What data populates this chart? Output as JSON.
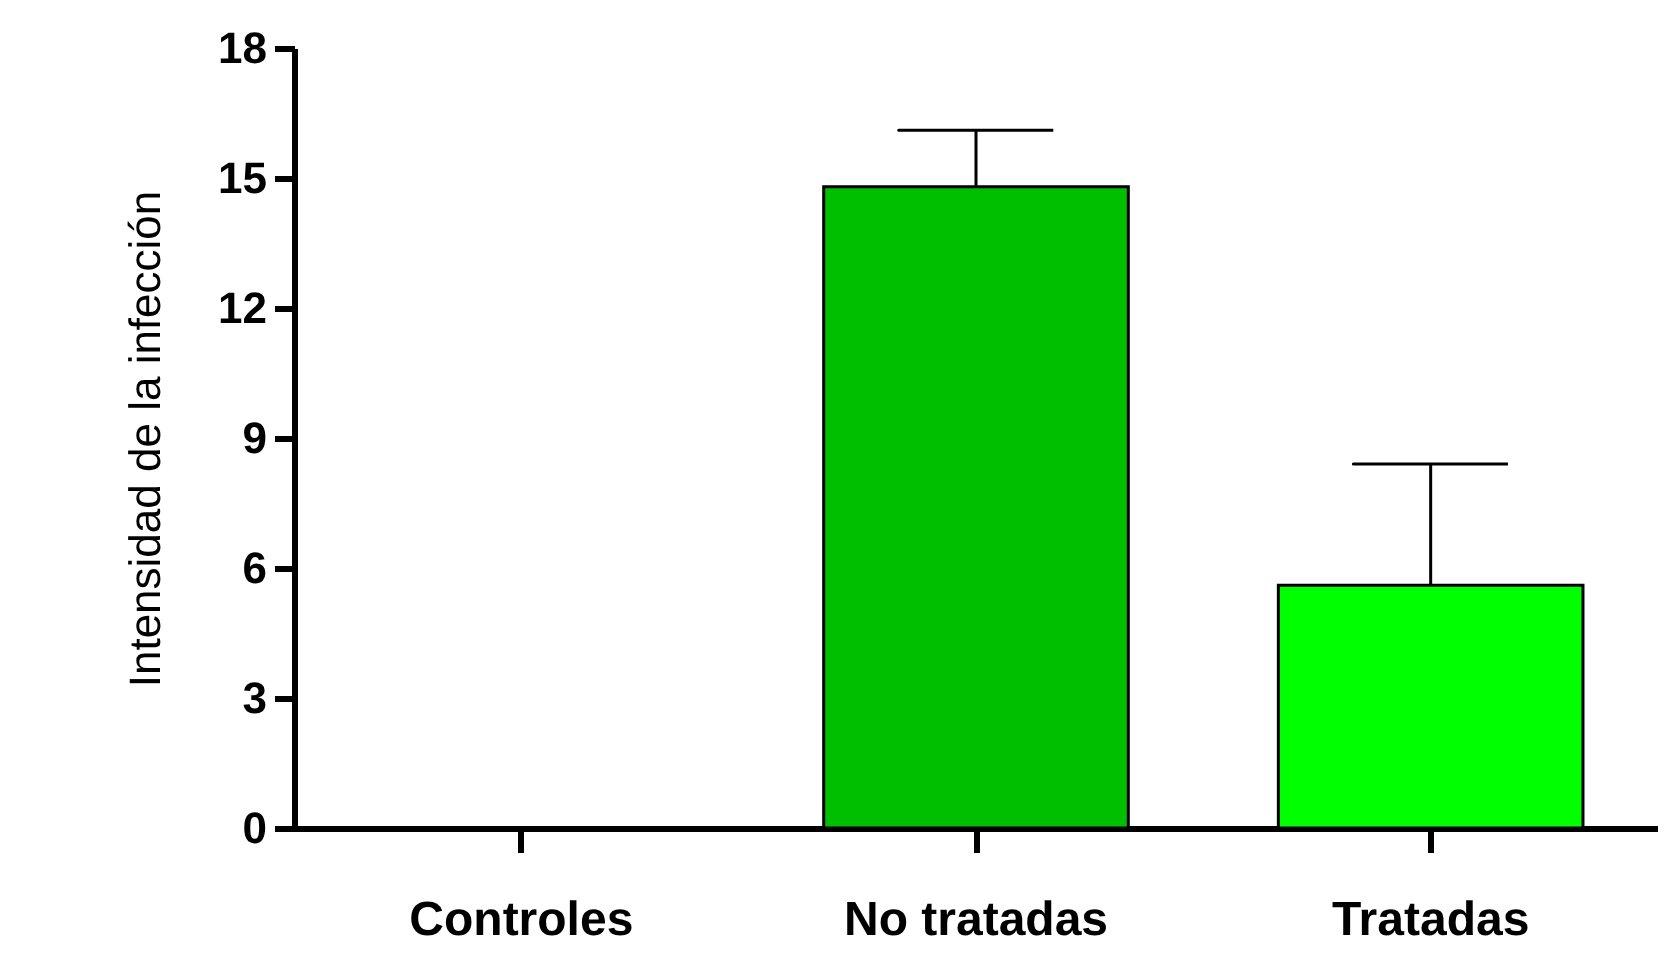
{
  "chart_data": {
    "type": "bar",
    "ylabel": "Intensidad de la infección",
    "categories": [
      "Controles",
      "No tratadas",
      "Tratadas"
    ],
    "values": [
      0,
      14.8,
      5.6
    ],
    "colors": [
      "#00bf00",
      "#00bf00",
      "#00ff00"
    ],
    "errors": [
      null,
      [
        14.8,
        16.1
      ],
      [
        5.6,
        8.4
      ]
    ],
    "ylim": [
      0,
      18
    ],
    "yticks": [
      0,
      3,
      6,
      9,
      12,
      15,
      18
    ],
    "grid": false,
    "legend": false
  }
}
